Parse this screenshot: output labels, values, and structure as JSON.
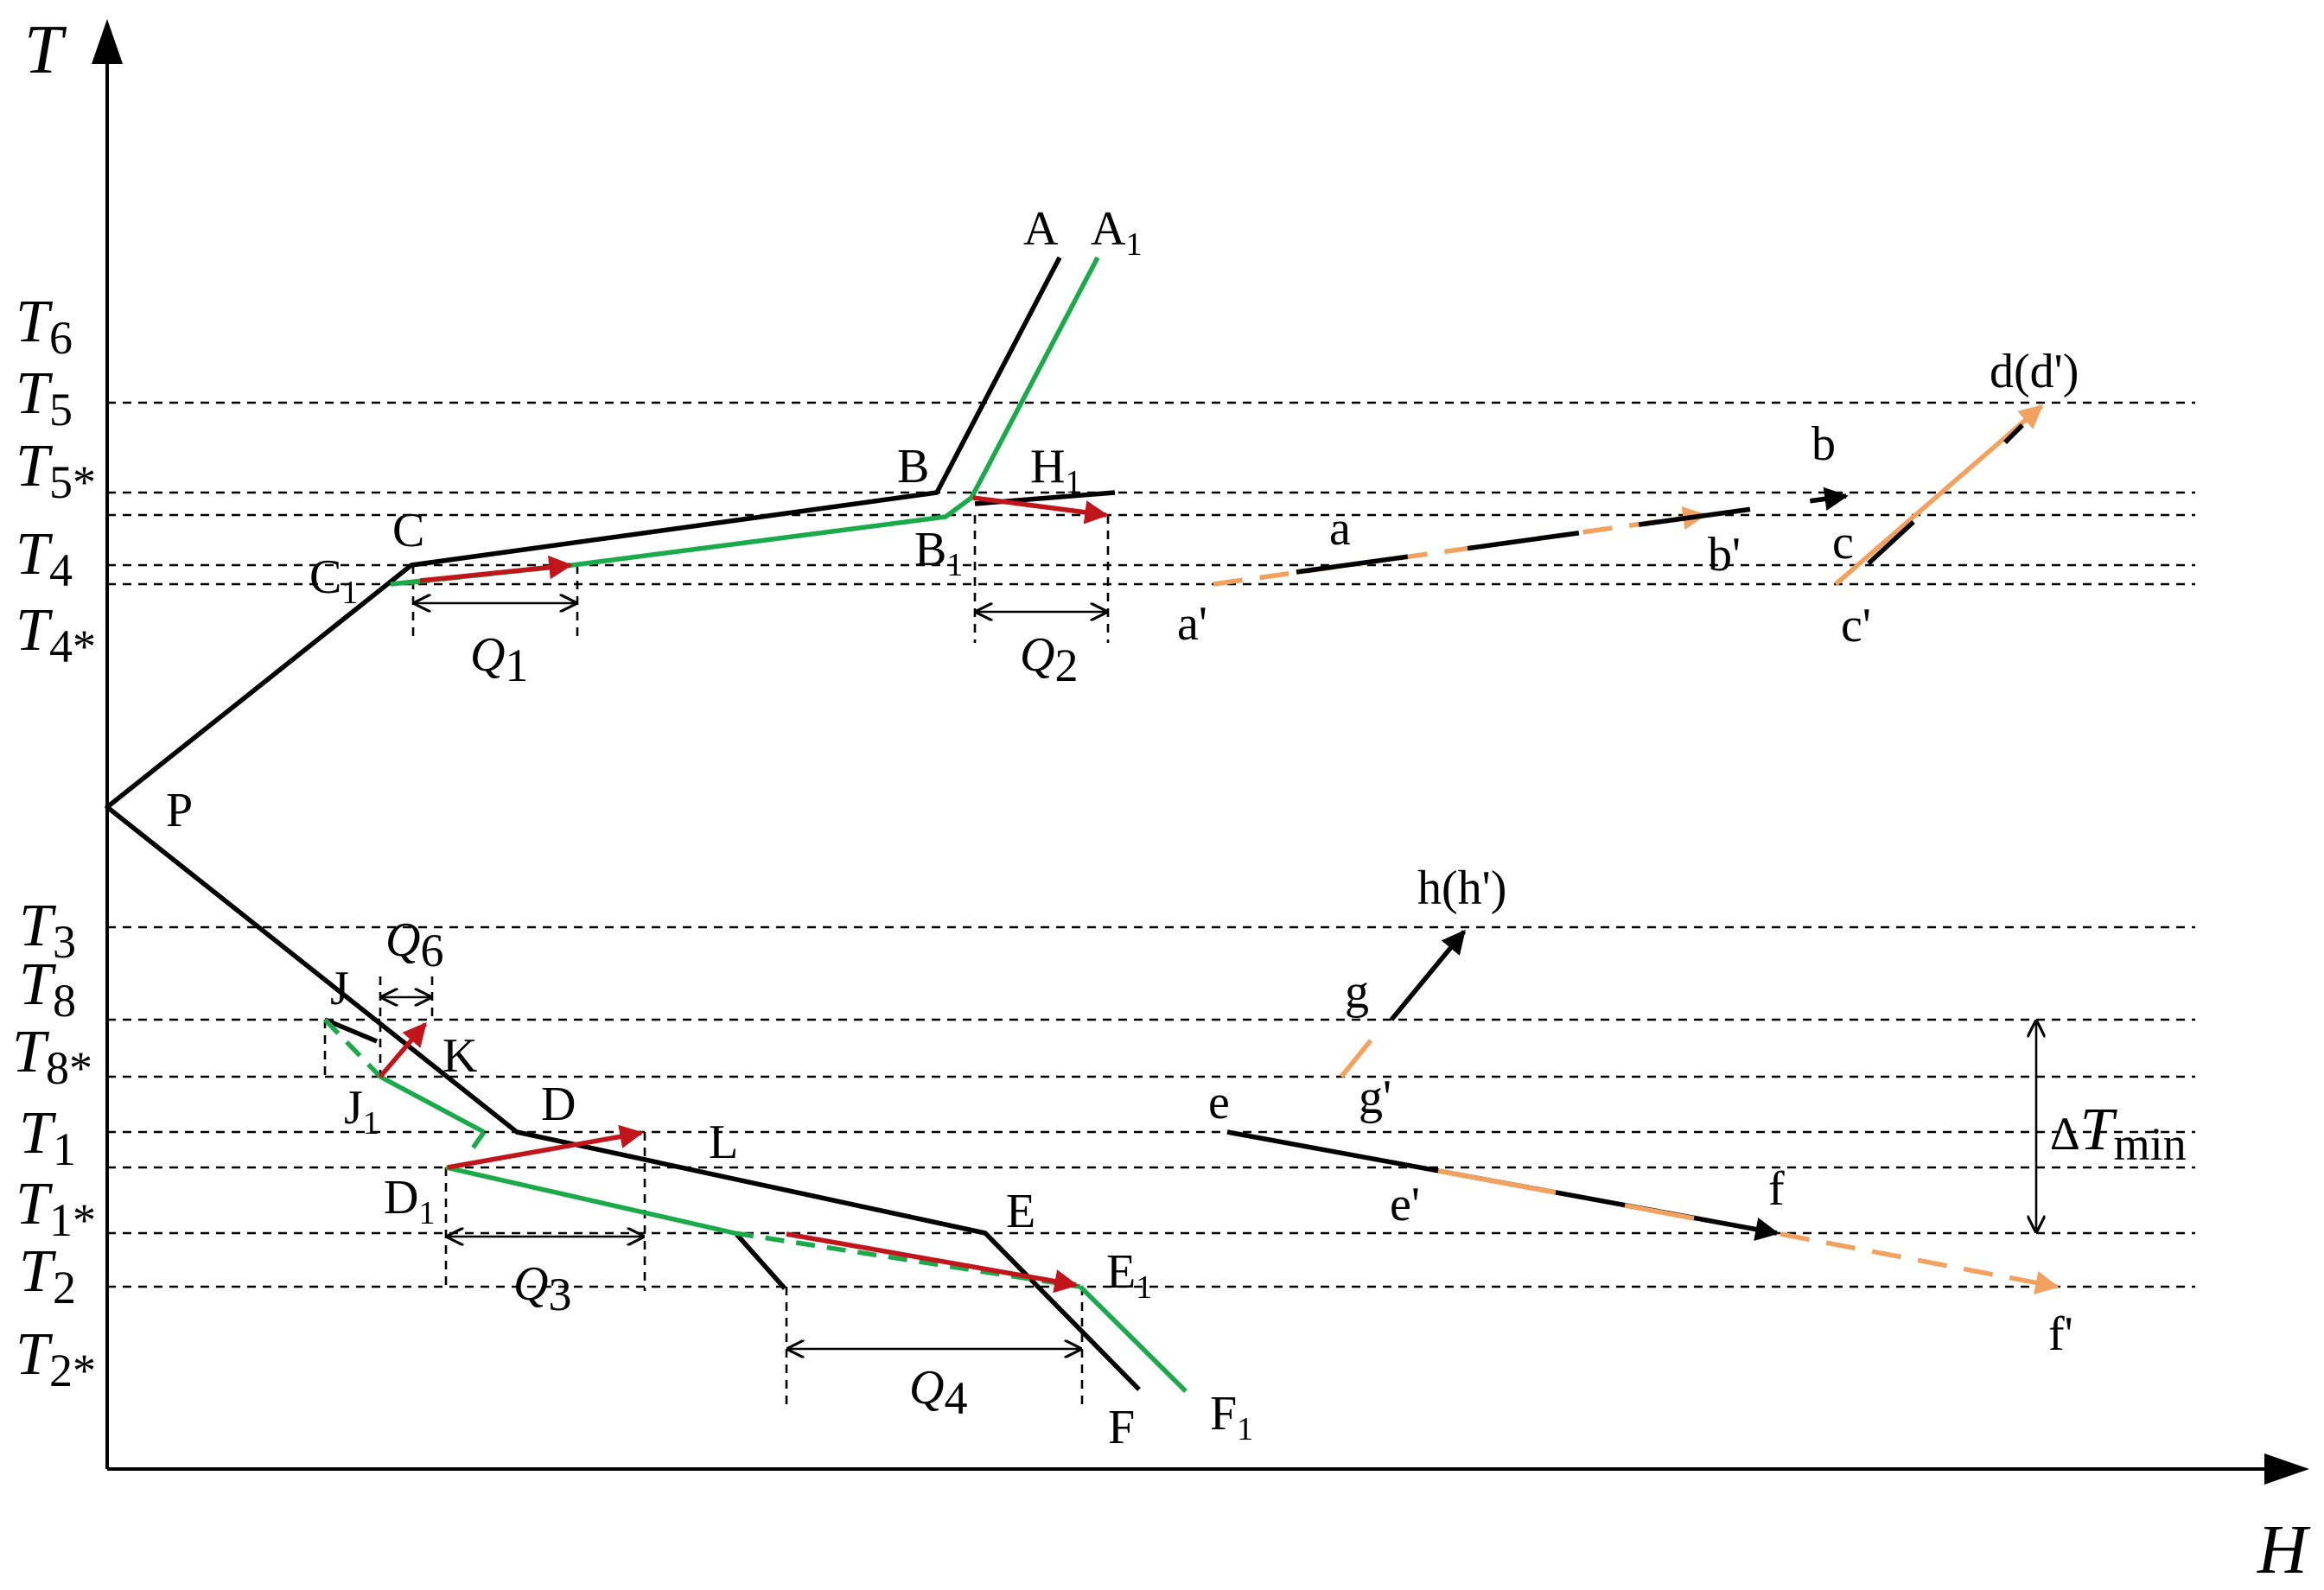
{
  "axes": {
    "y_label": "T",
    "x_label": "H"
  },
  "temperature_levels": [
    {
      "id": "T6",
      "base": "T",
      "sub": "6"
    },
    {
      "id": "T5",
      "base": "T",
      "sub": "5"
    },
    {
      "id": "T5s",
      "base": "T",
      "sub": "5*"
    },
    {
      "id": "T4",
      "base": "T",
      "sub": "4"
    },
    {
      "id": "T4s",
      "base": "T",
      "sub": "4*"
    },
    {
      "id": "T3",
      "base": "T",
      "sub": "3"
    },
    {
      "id": "T8",
      "base": "T",
      "sub": "8"
    },
    {
      "id": "T8s",
      "base": "T",
      "sub": "8*"
    },
    {
      "id": "T1",
      "base": "T",
      "sub": "1"
    },
    {
      "id": "T1s",
      "base": "T",
      "sub": "1*"
    },
    {
      "id": "T2",
      "base": "T",
      "sub": "2"
    },
    {
      "id": "T2s",
      "base": "T",
      "sub": "2*"
    }
  ],
  "points": {
    "A": "A",
    "A1": "A",
    "A1_sub": "1",
    "B": "B",
    "B1": "B",
    "B1_sub": "1",
    "H1": "H",
    "H1_sub": "1",
    "C": "C",
    "C1": "C",
    "C1_sub": "1",
    "P": "P",
    "J": "J",
    "J1": "J",
    "J1_sub": "1",
    "K": "K",
    "D": "D",
    "D1": "D",
    "D1_sub": "1",
    "L": "L",
    "E": "E",
    "E1": "E",
    "E1_sub": "1",
    "F": "F",
    "F1": "F",
    "F1_sub": "1"
  },
  "heat_loads": {
    "Q1": {
      "base": "Q",
      "sub": "1"
    },
    "Q2": {
      "base": "Q",
      "sub": "2"
    },
    "Q3": {
      "base": "Q",
      "sub": "3"
    },
    "Q4": {
      "base": "Q",
      "sub": "4"
    },
    "Q6": {
      "base": "Q",
      "sub": "6"
    }
  },
  "stream_labels": {
    "a": "a",
    "a_prime": "a'",
    "b": "b",
    "b_prime": "b'",
    "c": "c",
    "c_prime": "c'",
    "d": "d(d')",
    "e": "e",
    "e_prime": "e'",
    "f": "f",
    "f_prime": "f'",
    "g": "g",
    "g_prime": "g'",
    "h": "h(h')"
  },
  "delta_t": {
    "symbol": "Δ",
    "base": "T",
    "sub": "min"
  },
  "colors": {
    "original_curve": "#000000",
    "modified_curve": "#1aaa4a",
    "heat_transfer": "#c0161b",
    "modified_stream": "#f2a15f"
  }
}
